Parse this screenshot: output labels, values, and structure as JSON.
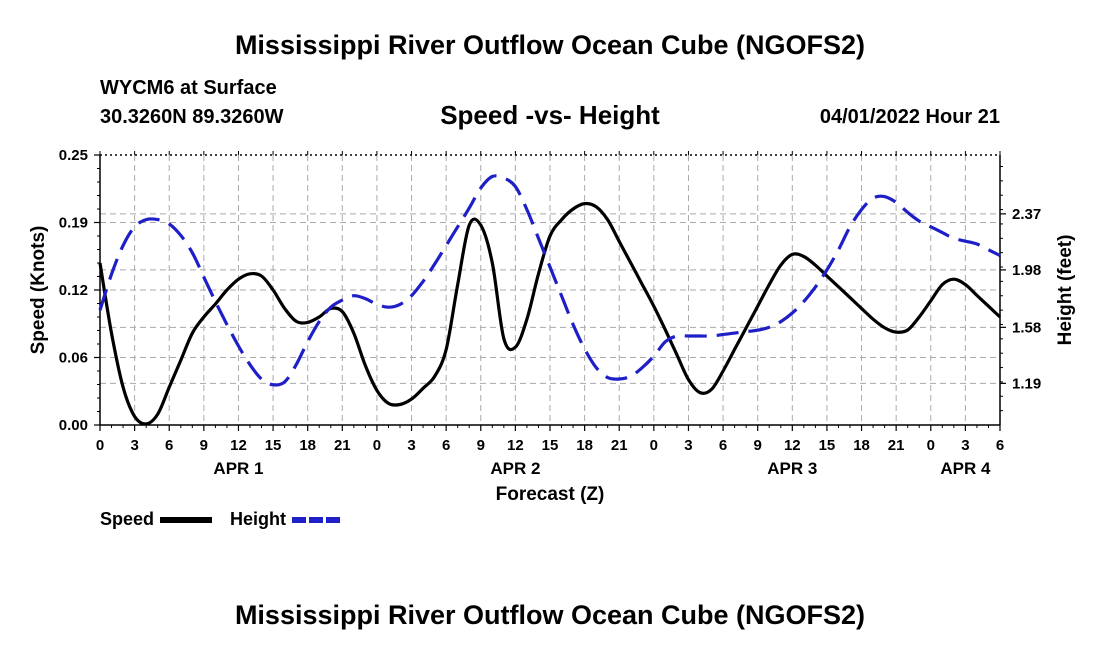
{
  "page": {
    "title": "Mississippi River Outflow Ocean Cube (NGOFS2)",
    "footer_title": "Mississippi River Outflow Ocean Cube (NGOFS2)",
    "station": "WYCM6 at Surface",
    "coordinates": "30.3260N  89.3260W",
    "subtitle": "Speed -vs- Height",
    "timestamp": "04/01/2022 Hour 21"
  },
  "legend": {
    "speed_label": "Speed",
    "height_label": "Height"
  },
  "colors": {
    "speed": "#000000",
    "height": "#1f1fc8",
    "grid": "#aaaaaa"
  },
  "chart_data": {
    "type": "line",
    "title": "Speed -vs- Height",
    "xlabel": "Forecast (Z)",
    "ylabel": "Speed (Knots)",
    "y2label": "Height (feet)",
    "xlim": [
      0,
      78
    ],
    "ylim": [
      0,
      0.25
    ],
    "y2lim": [
      0.9,
      2.78
    ],
    "x_ticks": [
      0,
      3,
      6,
      9,
      12,
      15,
      18,
      21,
      24,
      27,
      30,
      33,
      36,
      39,
      42,
      45,
      48,
      51,
      54,
      57,
      60,
      63,
      66,
      69,
      72,
      75,
      78
    ],
    "x_tick_labels": [
      "0",
      "3",
      "6",
      "9",
      "12",
      "15",
      "18",
      "21",
      "0",
      "3",
      "6",
      "9",
      "12",
      "15",
      "18",
      "21",
      "0",
      "3",
      "6",
      "9",
      "12",
      "15",
      "18",
      "21",
      "0",
      "3",
      "6"
    ],
    "date_labels": [
      {
        "x": 12,
        "label": "APR 1"
      },
      {
        "x": 36,
        "label": "APR 2"
      },
      {
        "x": 60,
        "label": "APR 3"
      },
      {
        "x": 75,
        "label": "APR 4"
      }
    ],
    "y_ticks": [
      0,
      0.0625,
      0.125,
      0.1875,
      0.25
    ],
    "y_tick_labels": [
      "0.00",
      "0.06",
      "0.12",
      "0.19",
      "0.25"
    ],
    "y2_ticks": [
      1.19,
      1.58,
      1.98,
      2.37
    ],
    "y2_tick_labels": [
      "1.19",
      "1.58",
      "1.98",
      "2.37"
    ],
    "series": [
      {
        "name": "Speed",
        "axis": "left",
        "style": "solid",
        "x": [
          0,
          1,
          2,
          3,
          4,
          5,
          6,
          7,
          8,
          9,
          10,
          11,
          12,
          13,
          14,
          15,
          16,
          17,
          18,
          19,
          20,
          21,
          22,
          23,
          24,
          25,
          26,
          27,
          28,
          29,
          30,
          31,
          32,
          33,
          34,
          35,
          36,
          37,
          38,
          39,
          40,
          41,
          42,
          43,
          44,
          45,
          46,
          47,
          48,
          49,
          50,
          51,
          52,
          53,
          54,
          55,
          56,
          57,
          58,
          59,
          60,
          61,
          62,
          63,
          64,
          65,
          66,
          67,
          68,
          69,
          70,
          71,
          72,
          73,
          74,
          75,
          76,
          77,
          78
        ],
        "values": [
          0.15,
          0.085,
          0.035,
          0.008,
          0.001,
          0.01,
          0.035,
          0.06,
          0.085,
          0.1,
          0.112,
          0.125,
          0.135,
          0.14,
          0.138,
          0.125,
          0.108,
          0.096,
          0.095,
          0.1,
          0.108,
          0.105,
          0.085,
          0.055,
          0.032,
          0.02,
          0.019,
          0.024,
          0.034,
          0.045,
          0.07,
          0.13,
          0.185,
          0.185,
          0.15,
          0.08,
          0.072,
          0.098,
          0.14,
          0.175,
          0.19,
          0.2,
          0.205,
          0.202,
          0.19,
          0.17,
          0.15,
          0.13,
          0.11,
          0.088,
          0.065,
          0.042,
          0.03,
          0.033,
          0.05,
          0.07,
          0.09,
          0.11,
          0.13,
          0.148,
          0.158,
          0.156,
          0.148,
          0.138,
          0.128,
          0.118,
          0.108,
          0.098,
          0.09,
          0.086,
          0.088,
          0.1,
          0.115,
          0.13,
          0.135,
          0.13,
          0.12,
          0.11,
          0.1
        ]
      },
      {
        "name": "Height",
        "axis": "right",
        "style": "dashed",
        "x": [
          0,
          1,
          2,
          3,
          4,
          5,
          6,
          7,
          8,
          9,
          10,
          11,
          12,
          13,
          14,
          15,
          16,
          17,
          18,
          19,
          20,
          21,
          22,
          23,
          24,
          25,
          26,
          27,
          28,
          29,
          30,
          31,
          32,
          33,
          34,
          35,
          36,
          37,
          38,
          39,
          40,
          41,
          42,
          43,
          44,
          45,
          46,
          47,
          48,
          49,
          50,
          51,
          52,
          53,
          54,
          55,
          56,
          57,
          58,
          59,
          60,
          61,
          62,
          63,
          64,
          65,
          66,
          67,
          68,
          69,
          70,
          71,
          72,
          73,
          74,
          75,
          76,
          77,
          78
        ],
        "values": [
          1.7,
          1.95,
          2.15,
          2.28,
          2.33,
          2.33,
          2.3,
          2.22,
          2.1,
          1.93,
          1.76,
          1.6,
          1.45,
          1.32,
          1.22,
          1.18,
          1.2,
          1.32,
          1.48,
          1.62,
          1.72,
          1.77,
          1.8,
          1.78,
          1.74,
          1.72,
          1.74,
          1.8,
          1.9,
          2.02,
          2.15,
          2.28,
          2.41,
          2.55,
          2.63,
          2.62,
          2.56,
          2.4,
          2.2,
          2.0,
          1.8,
          1.6,
          1.43,
          1.3,
          1.23,
          1.22,
          1.24,
          1.3,
          1.38,
          1.48,
          1.52,
          1.52,
          1.52,
          1.52,
          1.53,
          1.54,
          1.55,
          1.56,
          1.58,
          1.62,
          1.68,
          1.76,
          1.86,
          1.98,
          2.12,
          2.28,
          2.4,
          2.48,
          2.49,
          2.45,
          2.38,
          2.32,
          2.28,
          2.24,
          2.2,
          2.18,
          2.16,
          2.12,
          2.08
        ]
      }
    ]
  }
}
